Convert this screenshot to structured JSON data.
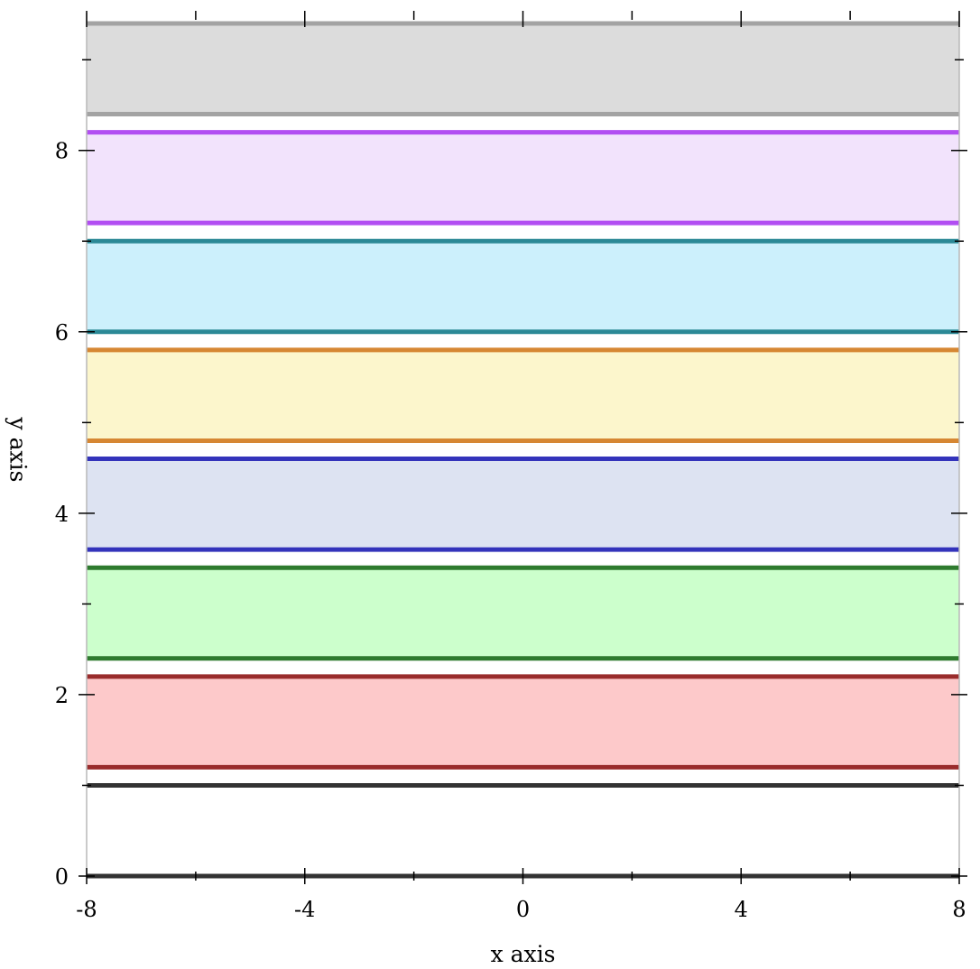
{
  "chart_data": {
    "type": "area",
    "title": "",
    "xlabel": "x axis",
    "ylabel": "y axis",
    "xlim": [
      -8,
      8
    ],
    "ylim": [
      0,
      9.4
    ],
    "grid": false,
    "legend": "none",
    "x_ticks": [
      -8,
      -6,
      -4,
      -2,
      0,
      2,
      4,
      6,
      8
    ],
    "x_tick_labels": [
      "-8",
      "-4",
      "0",
      "4",
      "8"
    ],
    "x_tick_label_values": [
      -8,
      -4,
      0,
      4,
      8
    ],
    "y_ticks": [
      0,
      1,
      2,
      3,
      4,
      5,
      6,
      7,
      8,
      9
    ],
    "y_tick_labels": [
      "0",
      "2",
      "4",
      "6",
      "8"
    ],
    "y_tick_label_values": [
      0,
      2,
      4,
      6,
      8
    ],
    "series": [
      {
        "y_lower": 0,
        "y_upper": 1,
        "fill": "#ffffff",
        "line": "#333333"
      },
      {
        "y_lower": 1.2,
        "y_upper": 2.2,
        "fill": "#fdc9ca",
        "line": "#992c2c"
      },
      {
        "y_lower": 2.4,
        "y_upper": 3.4,
        "fill": "#ccffcc",
        "line": "#2e7a2e"
      },
      {
        "y_lower": 3.6,
        "y_upper": 4.6,
        "fill": "#dde3f2",
        "line": "#3333bb"
      },
      {
        "y_lower": 4.8,
        "y_upper": 5.8,
        "fill": "#fcf6cc",
        "line": "#d68733"
      },
      {
        "y_lower": 6.0,
        "y_upper": 7.0,
        "fill": "#ccf0fc",
        "line": "#2b8996"
      },
      {
        "y_lower": 7.2,
        "y_upper": 8.2,
        "fill": "#f2e3fc",
        "line": "#b24ef2"
      },
      {
        "y_lower": 8.4,
        "y_upper": 9.4,
        "fill": "#dcdcdc",
        "line": "#a3a3a3"
      }
    ]
  }
}
